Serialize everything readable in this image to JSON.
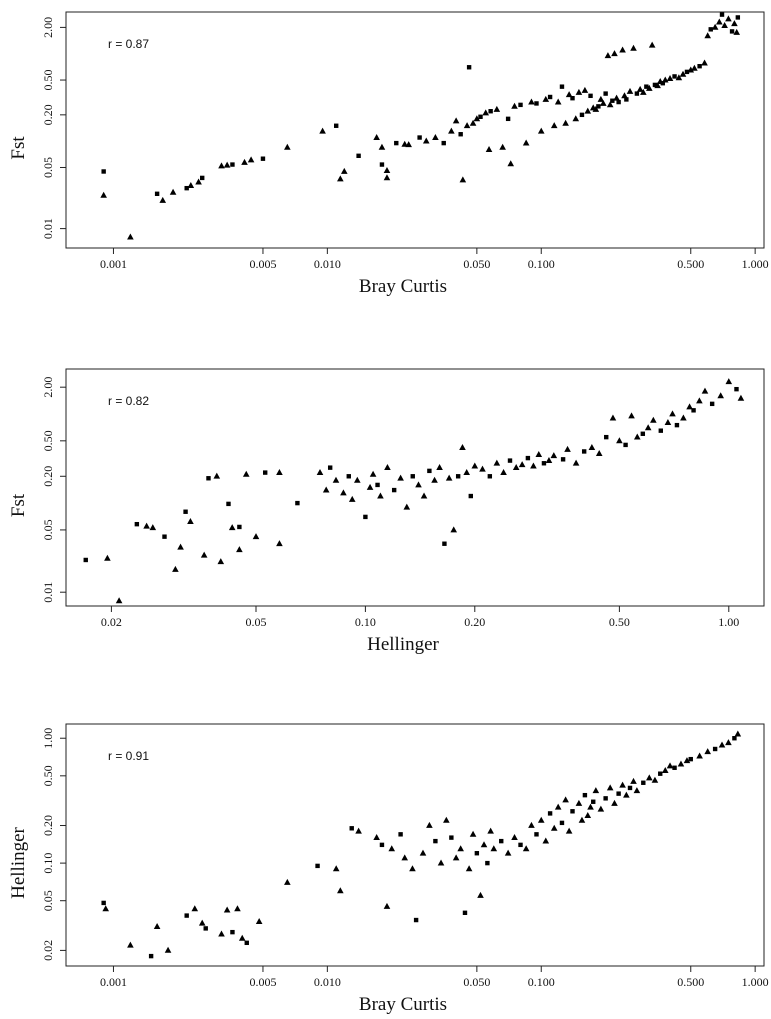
{
  "chart_data": [
    {
      "type": "scatter",
      "title": "",
      "xlabel": "Bray Curtis",
      "ylabel": "Fst",
      "annotation": "r = 0.87",
      "x_scale": "log",
      "y_scale": "log",
      "xlim": [
        0.0006,
        1.1
      ],
      "ylim": [
        0.006,
        3.0
      ],
      "xticks": [
        0.001,
        0.005,
        0.01,
        0.05,
        0.1,
        0.5,
        1.0
      ],
      "xtick_labels": [
        "0.001",
        "0.005",
        "0.010",
        "0.050",
        "0.100",
        "0.500",
        "1.000"
      ],
      "yticks": [
        0.01,
        0.05,
        0.2,
        0.5,
        2.0
      ],
      "ytick_labels": [
        "0.01",
        "0.05",
        "0.20",
        "0.50",
        "2.00"
      ],
      "grid": false,
      "legend": "none",
      "points": [
        [
          0.0009,
          0.045
        ],
        [
          0.0009,
          0.024
        ],
        [
          0.0012,
          0.008
        ],
        [
          0.0016,
          0.025
        ],
        [
          0.0017,
          0.021
        ],
        [
          0.0019,
          0.026
        ],
        [
          0.0022,
          0.029
        ],
        [
          0.0023,
          0.031
        ],
        [
          0.0025,
          0.034
        ],
        [
          0.0026,
          0.038
        ],
        [
          0.0032,
          0.052
        ],
        [
          0.0034,
          0.053
        ],
        [
          0.0036,
          0.054
        ],
        [
          0.0041,
          0.057
        ],
        [
          0.0044,
          0.061
        ],
        [
          0.005,
          0.063
        ],
        [
          0.0065,
          0.085
        ],
        [
          0.0095,
          0.13
        ],
        [
          0.011,
          0.15
        ],
        [
          0.0115,
          0.037
        ],
        [
          0.012,
          0.045
        ],
        [
          0.014,
          0.068
        ],
        [
          0.017,
          0.11
        ],
        [
          0.018,
          0.085
        ],
        [
          0.018,
          0.054
        ],
        [
          0.019,
          0.046
        ],
        [
          0.019,
          0.038
        ],
        [
          0.021,
          0.095
        ],
        [
          0.023,
          0.092
        ],
        [
          0.024,
          0.091
        ],
        [
          0.027,
          0.11
        ],
        [
          0.029,
          0.1
        ],
        [
          0.032,
          0.11
        ],
        [
          0.035,
          0.095
        ],
        [
          0.038,
          0.13
        ],
        [
          0.04,
          0.17
        ],
        [
          0.042,
          0.12
        ],
        [
          0.043,
          0.036
        ],
        [
          0.045,
          0.15
        ],
        [
          0.046,
          0.7
        ],
        [
          0.048,
          0.16
        ],
        [
          0.05,
          0.18
        ],
        [
          0.052,
          0.19
        ],
        [
          0.055,
          0.21
        ],
        [
          0.057,
          0.08
        ],
        [
          0.058,
          0.22
        ],
        [
          0.062,
          0.23
        ],
        [
          0.066,
          0.085
        ],
        [
          0.07,
          0.18
        ],
        [
          0.072,
          0.055
        ],
        [
          0.075,
          0.25
        ],
        [
          0.08,
          0.26
        ],
        [
          0.085,
          0.095
        ],
        [
          0.09,
          0.28
        ],
        [
          0.095,
          0.27
        ],
        [
          0.1,
          0.13
        ],
        [
          0.105,
          0.3
        ],
        [
          0.11,
          0.32
        ],
        [
          0.115,
          0.15
        ],
        [
          0.12,
          0.28
        ],
        [
          0.125,
          0.42
        ],
        [
          0.13,
          0.16
        ],
        [
          0.135,
          0.34
        ],
        [
          0.14,
          0.31
        ],
        [
          0.145,
          0.18
        ],
        [
          0.15,
          0.36
        ],
        [
          0.155,
          0.2
        ],
        [
          0.16,
          0.38
        ],
        [
          0.165,
          0.22
        ],
        [
          0.17,
          0.33
        ],
        [
          0.175,
          0.24
        ],
        [
          0.18,
          0.23
        ],
        [
          0.185,
          0.25
        ],
        [
          0.19,
          0.3
        ],
        [
          0.195,
          0.27
        ],
        [
          0.2,
          0.35
        ],
        [
          0.205,
          0.95
        ],
        [
          0.21,
          0.26
        ],
        [
          0.215,
          0.29
        ],
        [
          0.22,
          1.0
        ],
        [
          0.225,
          0.31
        ],
        [
          0.23,
          0.28
        ],
        [
          0.24,
          1.1
        ],
        [
          0.245,
          0.33
        ],
        [
          0.25,
          0.3
        ],
        [
          0.26,
          0.37
        ],
        [
          0.27,
          1.15
        ],
        [
          0.28,
          0.35
        ],
        [
          0.29,
          0.39
        ],
        [
          0.3,
          0.36
        ],
        [
          0.31,
          0.42
        ],
        [
          0.32,
          0.4
        ],
        [
          0.33,
          1.25
        ],
        [
          0.34,
          0.44
        ],
        [
          0.35,
          0.43
        ],
        [
          0.36,
          0.48
        ],
        [
          0.37,
          0.46
        ],
        [
          0.38,
          0.5
        ],
        [
          0.4,
          0.52
        ],
        [
          0.42,
          0.55
        ],
        [
          0.44,
          0.53
        ],
        [
          0.46,
          0.58
        ],
        [
          0.48,
          0.62
        ],
        [
          0.5,
          0.65
        ],
        [
          0.52,
          0.68
        ],
        [
          0.55,
          0.72
        ],
        [
          0.58,
          0.78
        ],
        [
          0.6,
          1.6
        ],
        [
          0.62,
          1.9
        ],
        [
          0.65,
          2.0
        ],
        [
          0.68,
          2.3
        ],
        [
          0.7,
          2.8
        ],
        [
          0.72,
          2.1
        ],
        [
          0.75,
          2.5
        ],
        [
          0.78,
          1.8
        ],
        [
          0.8,
          2.2
        ],
        [
          0.82,
          1.75
        ],
        [
          0.83,
          2.6
        ]
      ]
    },
    {
      "type": "scatter",
      "title": "",
      "xlabel": "Hellinger",
      "ylabel": "Fst",
      "annotation": "r = 0.82",
      "x_scale": "log",
      "y_scale": "log",
      "xlim": [
        0.015,
        1.25
      ],
      "ylim": [
        0.007,
        3.2
      ],
      "xticks": [
        0.02,
        0.05,
        0.1,
        0.2,
        0.5,
        1.0
      ],
      "xtick_labels": [
        "0.02",
        "0.05",
        "0.10",
        "0.20",
        "0.50",
        "1.00"
      ],
      "yticks": [
        0.01,
        0.05,
        0.2,
        0.5,
        2.0
      ],
      "ytick_labels": [
        "0.01",
        "0.05",
        "0.20",
        "0.50",
        "2.00"
      ],
      "grid": false,
      "legend": "none",
      "points": [
        [
          0.017,
          0.023
        ],
        [
          0.0195,
          0.024
        ],
        [
          0.021,
          0.008
        ],
        [
          0.0235,
          0.058
        ],
        [
          0.025,
          0.055
        ],
        [
          0.026,
          0.053
        ],
        [
          0.028,
          0.042
        ],
        [
          0.03,
          0.018
        ],
        [
          0.031,
          0.032
        ],
        [
          0.032,
          0.08
        ],
        [
          0.033,
          0.062
        ],
        [
          0.036,
          0.026
        ],
        [
          0.037,
          0.19
        ],
        [
          0.039,
          0.2
        ],
        [
          0.04,
          0.022
        ],
        [
          0.042,
          0.098
        ],
        [
          0.043,
          0.053
        ],
        [
          0.045,
          0.03
        ],
        [
          0.045,
          0.054
        ],
        [
          0.047,
          0.21
        ],
        [
          0.05,
          0.042
        ],
        [
          0.053,
          0.22
        ],
        [
          0.058,
          0.035
        ],
        [
          0.058,
          0.22
        ],
        [
          0.065,
          0.1
        ],
        [
          0.075,
          0.22
        ],
        [
          0.078,
          0.14
        ],
        [
          0.08,
          0.25
        ],
        [
          0.083,
          0.18
        ],
        [
          0.087,
          0.13
        ],
        [
          0.09,
          0.2
        ],
        [
          0.092,
          0.11
        ],
        [
          0.095,
          0.18
        ],
        [
          0.1,
          0.07
        ],
        [
          0.103,
          0.15
        ],
        [
          0.105,
          0.21
        ],
        [
          0.108,
          0.16
        ],
        [
          0.11,
          0.12
        ],
        [
          0.115,
          0.25
        ],
        [
          0.12,
          0.14
        ],
        [
          0.125,
          0.19
        ],
        [
          0.13,
          0.09
        ],
        [
          0.135,
          0.2
        ],
        [
          0.14,
          0.16
        ],
        [
          0.145,
          0.12
        ],
        [
          0.15,
          0.23
        ],
        [
          0.155,
          0.18
        ],
        [
          0.16,
          0.25
        ],
        [
          0.165,
          0.035
        ],
        [
          0.17,
          0.19
        ],
        [
          0.175,
          0.05
        ],
        [
          0.18,
          0.2
        ],
        [
          0.185,
          0.42
        ],
        [
          0.19,
          0.22
        ],
        [
          0.195,
          0.12
        ],
        [
          0.2,
          0.26
        ],
        [
          0.21,
          0.24
        ],
        [
          0.22,
          0.2
        ],
        [
          0.23,
          0.28
        ],
        [
          0.24,
          0.22
        ],
        [
          0.25,
          0.3
        ],
        [
          0.26,
          0.25
        ],
        [
          0.27,
          0.27
        ],
        [
          0.28,
          0.32
        ],
        [
          0.29,
          0.26
        ],
        [
          0.3,
          0.35
        ],
        [
          0.31,
          0.28
        ],
        [
          0.32,
          0.3
        ],
        [
          0.33,
          0.34
        ],
        [
          0.35,
          0.31
        ],
        [
          0.36,
          0.4
        ],
        [
          0.38,
          0.28
        ],
        [
          0.4,
          0.38
        ],
        [
          0.42,
          0.42
        ],
        [
          0.44,
          0.36
        ],
        [
          0.46,
          0.55
        ],
        [
          0.48,
          0.9
        ],
        [
          0.5,
          0.5
        ],
        [
          0.52,
          0.45
        ],
        [
          0.54,
          0.95
        ],
        [
          0.56,
          0.55
        ],
        [
          0.58,
          0.6
        ],
        [
          0.6,
          0.7
        ],
        [
          0.62,
          0.85
        ],
        [
          0.65,
          0.65
        ],
        [
          0.68,
          0.8
        ],
        [
          0.7,
          1.0
        ],
        [
          0.72,
          0.75
        ],
        [
          0.75,
          0.9
        ],
        [
          0.78,
          1.2
        ],
        [
          0.8,
          1.1
        ],
        [
          0.83,
          1.4
        ],
        [
          0.86,
          1.8
        ],
        [
          0.9,
          1.3
        ],
        [
          0.95,
          1.6
        ],
        [
          1.0,
          2.3
        ],
        [
          1.05,
          1.9
        ],
        [
          1.08,
          1.5
        ]
      ]
    },
    {
      "type": "scatter",
      "title": "",
      "xlabel": "Bray Curtis",
      "ylabel": "Hellinger",
      "annotation": "r = 0.91",
      "x_scale": "log",
      "y_scale": "log",
      "xlim": [
        0.0006,
        1.1
      ],
      "ylim": [
        0.015,
        1.3
      ],
      "xticks": [
        0.001,
        0.005,
        0.01,
        0.05,
        0.1,
        0.5,
        1.0
      ],
      "xtick_labels": [
        "0.001",
        "0.005",
        "0.010",
        "0.050",
        "0.100",
        "0.500",
        "1.000"
      ],
      "yticks": [
        0.02,
        0.05,
        0.1,
        0.2,
        0.5,
        1.0
      ],
      "ytick_labels": [
        "0.02",
        "0.05",
        "0.10",
        "0.20",
        "0.50",
        "1.00"
      ],
      "grid": false,
      "legend": "none",
      "points": [
        [
          0.0009,
          0.048
        ],
        [
          0.00092,
          0.043
        ],
        [
          0.0012,
          0.022
        ],
        [
          0.0015,
          0.018
        ],
        [
          0.0016,
          0.031
        ],
        [
          0.0018,
          0.02
        ],
        [
          0.0022,
          0.038
        ],
        [
          0.0024,
          0.043
        ],
        [
          0.0026,
          0.033
        ],
        [
          0.0027,
          0.03
        ],
        [
          0.0032,
          0.027
        ],
        [
          0.0034,
          0.042
        ],
        [
          0.0036,
          0.028
        ],
        [
          0.0038,
          0.043
        ],
        [
          0.004,
          0.025
        ],
        [
          0.0042,
          0.023
        ],
        [
          0.0048,
          0.034
        ],
        [
          0.0065,
          0.07
        ],
        [
          0.009,
          0.095
        ],
        [
          0.011,
          0.09
        ],
        [
          0.0115,
          0.06
        ],
        [
          0.013,
          0.19
        ],
        [
          0.014,
          0.18
        ],
        [
          0.017,
          0.16
        ],
        [
          0.018,
          0.14
        ],
        [
          0.019,
          0.045
        ],
        [
          0.02,
          0.13
        ],
        [
          0.022,
          0.17
        ],
        [
          0.023,
          0.11
        ],
        [
          0.025,
          0.09
        ],
        [
          0.026,
          0.035
        ],
        [
          0.028,
          0.12
        ],
        [
          0.03,
          0.2
        ],
        [
          0.032,
          0.15
        ],
        [
          0.034,
          0.1
        ],
        [
          0.036,
          0.22
        ],
        [
          0.038,
          0.16
        ],
        [
          0.04,
          0.11
        ],
        [
          0.042,
          0.13
        ],
        [
          0.044,
          0.04
        ],
        [
          0.046,
          0.09
        ],
        [
          0.048,
          0.17
        ],
        [
          0.05,
          0.12
        ],
        [
          0.052,
          0.055
        ],
        [
          0.054,
          0.14
        ],
        [
          0.056,
          0.1
        ],
        [
          0.058,
          0.18
        ],
        [
          0.06,
          0.13
        ],
        [
          0.065,
          0.15
        ],
        [
          0.07,
          0.12
        ],
        [
          0.075,
          0.16
        ],
        [
          0.08,
          0.14
        ],
        [
          0.085,
          0.13
        ],
        [
          0.09,
          0.2
        ],
        [
          0.095,
          0.17
        ],
        [
          0.1,
          0.22
        ],
        [
          0.105,
          0.15
        ],
        [
          0.11,
          0.25
        ],
        [
          0.115,
          0.19
        ],
        [
          0.12,
          0.28
        ],
        [
          0.125,
          0.21
        ],
        [
          0.13,
          0.32
        ],
        [
          0.135,
          0.18
        ],
        [
          0.14,
          0.26
        ],
        [
          0.15,
          0.3
        ],
        [
          0.155,
          0.22
        ],
        [
          0.16,
          0.35
        ],
        [
          0.165,
          0.24
        ],
        [
          0.17,
          0.28
        ],
        [
          0.175,
          0.31
        ],
        [
          0.18,
          0.38
        ],
        [
          0.19,
          0.27
        ],
        [
          0.2,
          0.33
        ],
        [
          0.21,
          0.4
        ],
        [
          0.22,
          0.3
        ],
        [
          0.23,
          0.36
        ],
        [
          0.24,
          0.42
        ],
        [
          0.25,
          0.35
        ],
        [
          0.26,
          0.4
        ],
        [
          0.27,
          0.45
        ],
        [
          0.28,
          0.38
        ],
        [
          0.3,
          0.44
        ],
        [
          0.32,
          0.48
        ],
        [
          0.34,
          0.46
        ],
        [
          0.36,
          0.52
        ],
        [
          0.38,
          0.55
        ],
        [
          0.4,
          0.6
        ],
        [
          0.42,
          0.58
        ],
        [
          0.45,
          0.62
        ],
        [
          0.48,
          0.66
        ],
        [
          0.5,
          0.68
        ],
        [
          0.55,
          0.72
        ],
        [
          0.6,
          0.78
        ],
        [
          0.65,
          0.82
        ],
        [
          0.7,
          0.88
        ],
        [
          0.75,
          0.92
        ],
        [
          0.8,
          1.0
        ],
        [
          0.83,
          1.08
        ]
      ]
    }
  ]
}
